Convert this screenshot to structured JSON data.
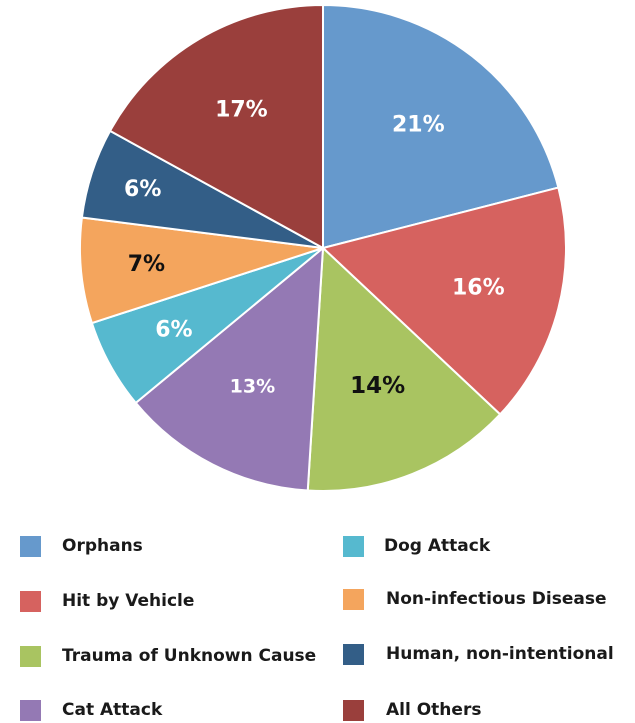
{
  "chart_data": {
    "type": "pie",
    "slices": [
      {
        "label": "Orphans",
        "value": 21,
        "text": "21%",
        "color": "#6699cc",
        "label_color": "#ffffff"
      },
      {
        "label": "Hit by Vehicle",
        "value": 16,
        "text": "16%",
        "color": "#d6625f",
        "label_color": "#ffffff"
      },
      {
        "label": "Trauma of Unknown Cause",
        "value": 14,
        "text": "14%",
        "color": "#a9c461",
        "label_color": "#111111"
      },
      {
        "label": "Cat Attack",
        "value": 13,
        "text": "13%",
        "color": "#9479b4",
        "label_color": "#ffffff"
      },
      {
        "label": "Dog Attack",
        "value": 6,
        "text": "6%",
        "color": "#56b9cf",
        "label_color": "#ffffff"
      },
      {
        "label": "Non-infectious Disease",
        "value": 7,
        "text": "7%",
        "color": "#f4a55d",
        "label_color": "#111111"
      },
      {
        "label": "Human, non-intentional",
        "value": 6,
        "text": "6%",
        "color": "#335e87",
        "label_color": "#ffffff"
      },
      {
        "label": "All Others",
        "value": 17,
        "text": "17%",
        "color": "#9a3f3c",
        "label_color": "#ffffff"
      }
    ],
    "start_angle_deg": 0,
    "direction": "clockwise",
    "legend_position": "bottom"
  },
  "legend": {
    "items": [
      {
        "label": "Orphans",
        "color": "#6699cc"
      },
      {
        "label": "Hit by Vehicle",
        "color": "#d6625f"
      },
      {
        "label": "Trauma of Unknown Cause",
        "color": "#a9c461"
      },
      {
        "label": "Cat Attack",
        "color": "#9479b4"
      },
      {
        "label": "Dog Attack",
        "color": "#56b9cf"
      },
      {
        "label": "Non-infectious Disease",
        "color": "#f4a55d"
      },
      {
        "label": "Human, non-intentional",
        "color": "#335e87"
      },
      {
        "label": "All Others",
        "color": "#9a3f3c"
      }
    ]
  }
}
